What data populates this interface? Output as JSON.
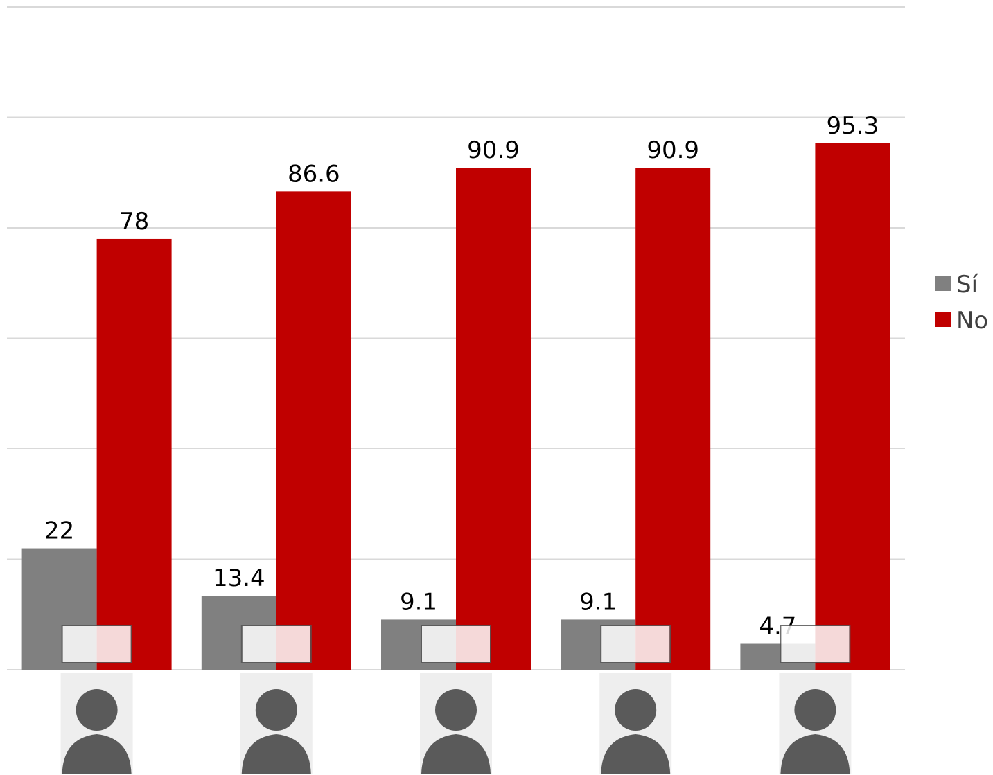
{
  "chart_data": {
    "type": "bar",
    "categories": [
      null,
      null,
      null,
      null,
      null
    ],
    "series": [
      {
        "name": "Sí",
        "color": "#808080",
        "values": [
          22,
          13.4,
          9.1,
          9.1,
          4.7
        ]
      },
      {
        "name": "No",
        "color": "#c00000",
        "values": [
          78,
          86.6,
          90.9,
          90.9,
          95.3
        ]
      }
    ],
    "ylim": [
      0,
      120
    ],
    "yticks": [
      0,
      20,
      40,
      60,
      80,
      100,
      120
    ],
    "grid": true,
    "legend": "right"
  }
}
